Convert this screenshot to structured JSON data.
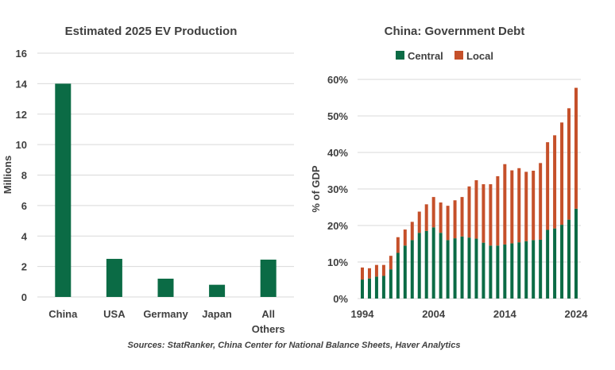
{
  "colors": {
    "central": "#0b6b45",
    "local": "#c5502a",
    "ev_bar": "#0b6b45",
    "grid": "#d9d9d9"
  },
  "chart_data": [
    {
      "type": "bar",
      "title": "Estimated 2025 EV Production",
      "ylabel": "Millions",
      "categories": [
        [
          "China"
        ],
        [
          "USA"
        ],
        [
          "Germany"
        ],
        [
          "Japan"
        ],
        [
          "All",
          "Others"
        ]
      ],
      "values": [
        14,
        2.5,
        1.2,
        0.8,
        2.45
      ],
      "ylim": [
        0,
        16
      ],
      "yticks": [
        0,
        2,
        4,
        6,
        8,
        10,
        12,
        14,
        16
      ],
      "grid": true
    },
    {
      "type": "bar",
      "stacked": true,
      "title": "China: Government Debt",
      "ylabel": "% of GDP",
      "x": [
        1994,
        1995,
        1996,
        1997,
        1998,
        1999,
        2000,
        2001,
        2002,
        2003,
        2004,
        2005,
        2006,
        2007,
        2008,
        2009,
        2010,
        2011,
        2012,
        2013,
        2014,
        2015,
        2016,
        2017,
        2018,
        2019,
        2020,
        2021,
        2022,
        2023,
        2024
      ],
      "xticks": [
        1994,
        2004,
        2014,
        2024
      ],
      "ylim": [
        0,
        60
      ],
      "yticks": [
        "0%",
        "10%",
        "20%",
        "30%",
        "40%",
        "50%",
        "60%"
      ],
      "legend_position": "top",
      "grid": true,
      "series": [
        {
          "name": "Central",
          "values": [
            5.2,
            5.5,
            6.0,
            6.2,
            8.0,
            12.5,
            14.5,
            16.0,
            18.0,
            18.5,
            19.5,
            18.0,
            16.0,
            16.5,
            17.0,
            16.7,
            16.4,
            15.3,
            14.5,
            14.5,
            14.8,
            15.1,
            15.4,
            15.7,
            16.0,
            16.1,
            18.8,
            19.2,
            20.2,
            21.6,
            24.6
          ]
        },
        {
          "name": "Local",
          "values": [
            3.3,
            2.8,
            3.2,
            3.0,
            3.7,
            4.3,
            4.4,
            5.0,
            5.8,
            7.3,
            8.3,
            8.3,
            9.4,
            10.4,
            10.8,
            14.0,
            16.0,
            16.0,
            16.8,
            19.0,
            22.0,
            20.0,
            20.3,
            19.0,
            19.0,
            21.0,
            24.0,
            25.5,
            28.0,
            30.5,
            33.1
          ]
        }
      ]
    }
  ],
  "source": "Sources: StatRanker, China Center for National Balance Sheets, Haver Analytics"
}
